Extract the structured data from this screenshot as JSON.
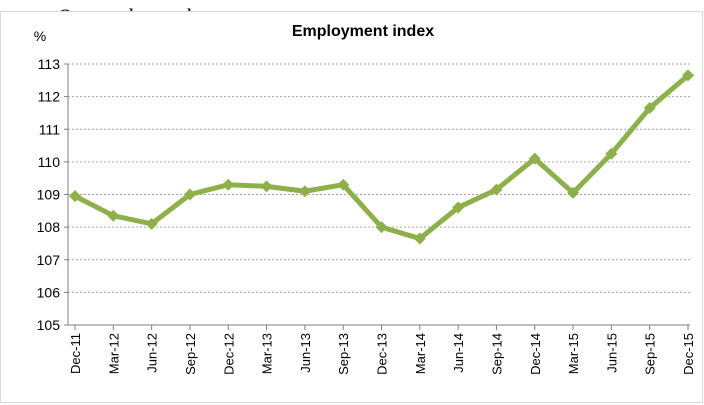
{
  "top_text": "Quarterly employment",
  "chart_data": {
    "type": "line",
    "title": "Employment index",
    "ylabel": "%",
    "xlabel": "",
    "categories": [
      "Dec-11",
      "Mar-12",
      "Jun-12",
      "Sep-12",
      "Dec-12",
      "Mar-13",
      "Jun-13",
      "Sep-13",
      "Dec-13",
      "Mar-14",
      "Jun-14",
      "Sep-14",
      "Dec-14",
      "Mar-15",
      "Jun-15",
      "Sep-15",
      "Dec-15"
    ],
    "ylim": [
      105,
      113
    ],
    "yticks": [
      "105",
      "106",
      "107",
      "108",
      "109",
      "110",
      "111",
      "112",
      "113"
    ],
    "grid": true,
    "legend": "none",
    "series": [
      {
        "color": "#8db04a",
        "values": [
          108.95,
          108.35,
          108.1,
          109.0,
          109.3,
          109.25,
          109.1,
          109.3,
          108.0,
          107.65,
          108.6,
          109.15,
          110.1,
          109.05,
          110.25,
          111.65,
          112.65
        ]
      }
    ]
  }
}
